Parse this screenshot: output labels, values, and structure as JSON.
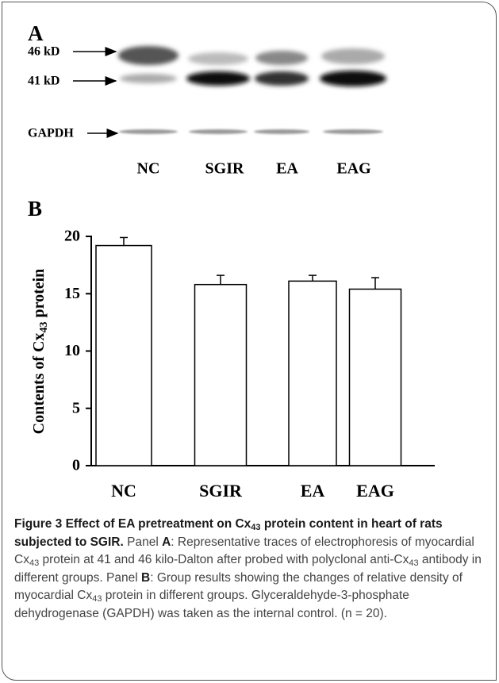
{
  "panel_a": {
    "label": "A",
    "markers": [
      "46 kD",
      "41 kD",
      "GAPDH"
    ],
    "lanes": [
      "NC",
      "SGIR",
      "EA",
      "EAG"
    ]
  },
  "chart_data": {
    "type": "bar",
    "label": "B",
    "ylabel": [
      "Contents of Cx",
      "43",
      " protein"
    ],
    "categories": [
      "NC",
      "SGIR",
      "EA",
      "EAG"
    ],
    "values": [
      19.2,
      15.8,
      16.1,
      15.4
    ],
    "errors": [
      0.7,
      0.8,
      0.5,
      1.0
    ],
    "color": "#ffffff",
    "ylim": [
      0,
      20
    ],
    "yticks": [
      0,
      5,
      10,
      15,
      20
    ]
  },
  "caption": [
    {
      "text": "Figure 3 Effect of EA pretreatment on Cx",
      "bold": true
    },
    {
      "text": "43",
      "bold": true,
      "sub": true
    },
    {
      "text": " protein content in heart of rats subjected to SGIR.",
      "bold": true
    },
    {
      "text": " Panel "
    },
    {
      "text": "A",
      "bold": true
    },
    {
      "text": ": Representative traces of electrophoresis of myocardial Cx"
    },
    {
      "text": "43",
      "sub": true
    },
    {
      "text": " protein at 41 and 46 kilo-Dalton after probed with polyclonal anti-Cx"
    },
    {
      "text": "43",
      "sub": true
    },
    {
      "text": " antibody in different groups. Panel "
    },
    {
      "text": "B",
      "bold": true
    },
    {
      "text": ": Group results showing the changes of relative density of myocardial Cx"
    },
    {
      "text": "43",
      "sub": true
    },
    {
      "text": " protein in different groups. Glyceraldehyde-3-phosphate dehydrogenase (GAPDH) was taken as the internal control. (n = 20)."
    }
  ]
}
